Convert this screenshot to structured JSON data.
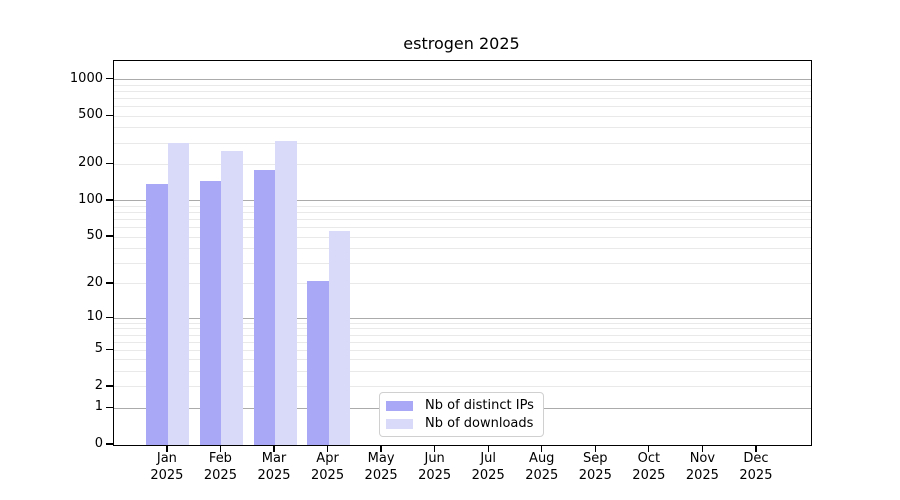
{
  "chart_data": {
    "type": "bar",
    "title": "estrogen 2025",
    "year": "2025",
    "categories": [
      "Jan",
      "Feb",
      "Mar",
      "Apr",
      "May",
      "Jun",
      "Jul",
      "Aug",
      "Sep",
      "Oct",
      "Nov",
      "Dec"
    ],
    "series": [
      {
        "name": "Nb of distinct IPs",
        "color": "#a8a8f6",
        "values": [
          137,
          147,
          181,
          21,
          0,
          0,
          0,
          0,
          0,
          0,
          0,
          0
        ]
      },
      {
        "name": "Nb of downloads",
        "color": "#d9d9fa",
        "values": [
          300,
          260,
          315,
          56,
          0,
          0,
          0,
          0,
          0,
          0,
          0,
          0
        ]
      }
    ],
    "y_ticks": [
      0,
      1,
      2,
      5,
      10,
      20,
      50,
      100,
      200,
      500,
      1000
    ],
    "y_scale": "log10(value+1)",
    "ylim": [
      0,
      1400
    ],
    "grid": "horizontal",
    "legend_position": "lower-center"
  },
  "colors": {
    "background": "#ffffff",
    "axis": "#000000",
    "major_grid": "#ababab",
    "minor_grid": "#e9e9e9",
    "legend_border": "#d0d0d0",
    "text": "#000000"
  }
}
